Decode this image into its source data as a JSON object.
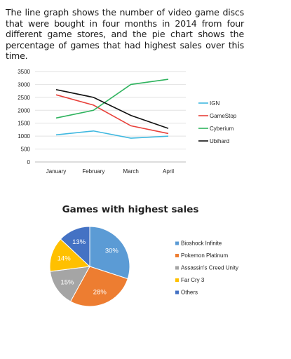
{
  "intro": "The line graph shows the number of video game discs that were bought in four months in 2014 from four different game stores, and the pie chart shows the percentage of games that had highest sales over this time.",
  "chart_data": [
    {
      "type": "line",
      "title": "",
      "xlabel": "",
      "ylabel": "",
      "x": [
        "January",
        "February",
        "March",
        "April"
      ],
      "ylim": [
        0,
        3500
      ],
      "yticks": [
        "0",
        "500",
        "1000",
        "1500",
        "2000",
        "2500",
        "3000",
        "3500"
      ],
      "grid": true,
      "legend": "right",
      "series": [
        {
          "name": "IGN",
          "color": "#3fb8e0",
          "values": [
            1050,
            1200,
            920,
            1000
          ]
        },
        {
          "name": "GameStop",
          "color": "#e8403a",
          "values": [
            2600,
            2200,
            1400,
            1100
          ]
        },
        {
          "name": "Cyberium",
          "color": "#2fb35e",
          "values": [
            1700,
            2000,
            3000,
            3200
          ]
        },
        {
          "name": "Ubihard",
          "color": "#111111",
          "values": [
            2800,
            2500,
            1800,
            1300
          ]
        }
      ]
    },
    {
      "type": "pie",
      "title": "Games with highest sales",
      "legend": "right",
      "slices": [
        {
          "name": "Bioshock Infinite",
          "value": 30,
          "label": "30%",
          "color": "#5b9bd5"
        },
        {
          "name": "Pokemon Platinum",
          "value": 28,
          "label": "28%",
          "color": "#ed7d31"
        },
        {
          "name": "Assassin's Creed Unity",
          "value": 15,
          "label": "15%",
          "color": "#a5a5a5"
        },
        {
          "name": "Far Cry 3",
          "value": 14,
          "label": "14%",
          "color": "#ffc000"
        },
        {
          "name": "Others",
          "value": 13,
          "label": "13%",
          "color": "#4472c4"
        }
      ]
    }
  ]
}
